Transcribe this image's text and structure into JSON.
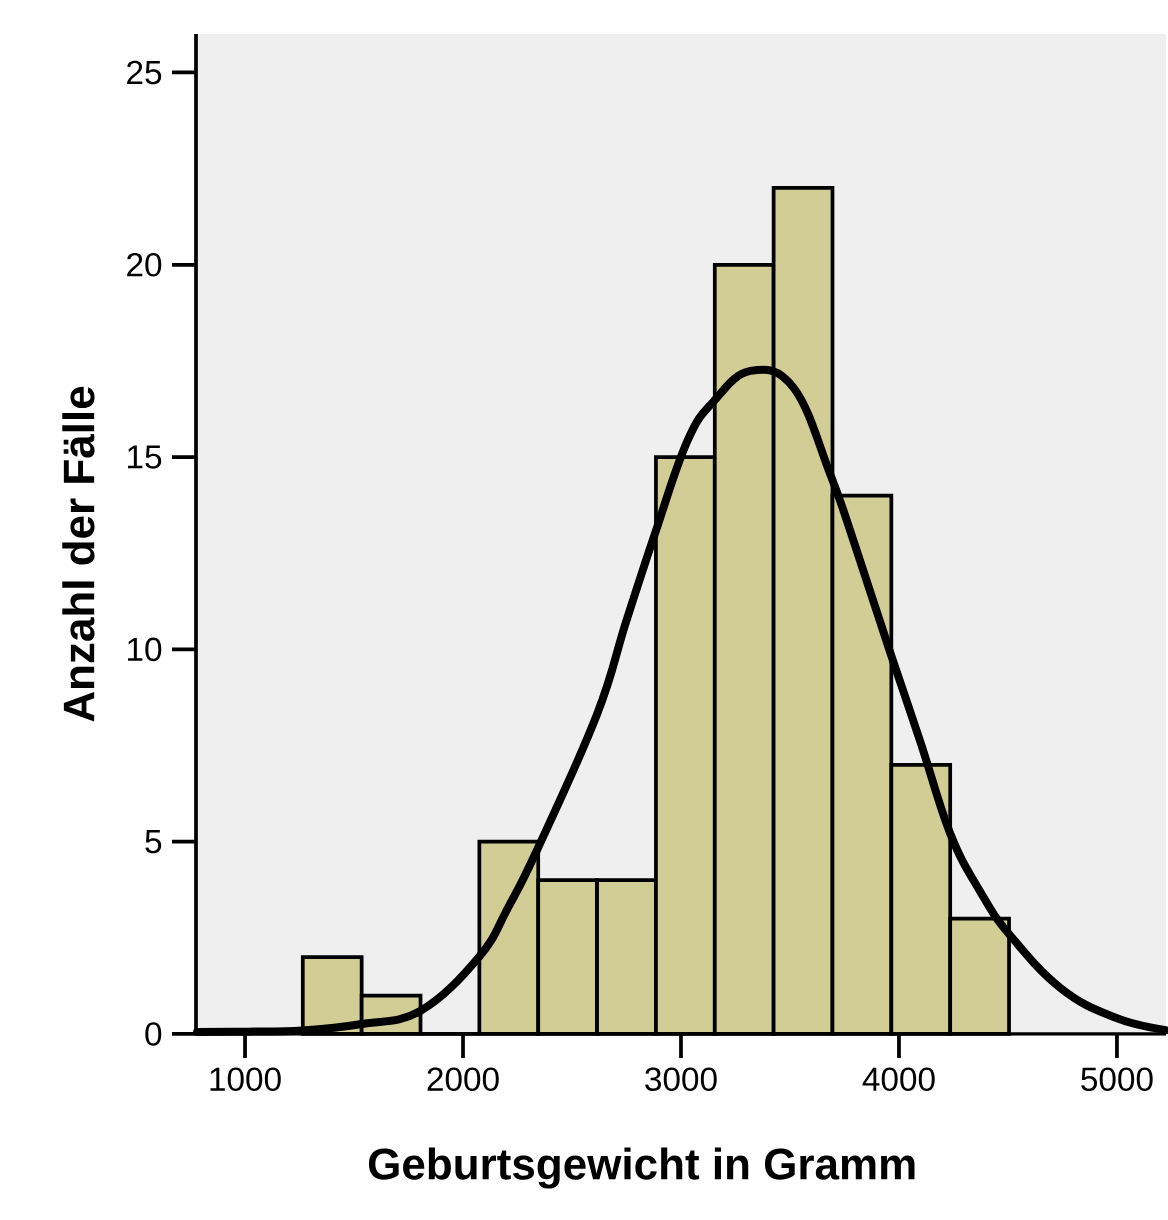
{
  "chart_data": {
    "type": "histogram",
    "xlabel": "Geburtsgewicht in Gramm",
    "ylabel": "Anzahl der Fälle",
    "bins": [
      1265,
      1535,
      1805,
      2075,
      2345,
      2615,
      2885,
      3155,
      3425,
      3695,
      3965,
      4235,
      4505
    ],
    "series": [
      {
        "color": "#d1cd94",
        "values": [
          2,
          1,
          0,
          5,
          4,
          4,
          15,
          20,
          22,
          14,
          7,
          3
        ]
      },
      {
        "type": "line",
        "color": "#000000",
        "x": [
          780,
          1010,
          1263,
          1535,
          1804,
          2073,
          2208,
          2345,
          2614,
          2747,
          2880,
          3028,
          3150,
          3319,
          3517,
          3685,
          3793,
          3961,
          4098,
          4236,
          4373,
          4505,
          4740,
          4985,
          5224
        ],
        "values": [
          0.05,
          0.06,
          0.09,
          0.26,
          0.6,
          2.0,
          3.3,
          4.85,
          8.3,
          10.7,
          13.0,
          15.4,
          16.45,
          17.24,
          16.8,
          14.55,
          12.8,
          9.9,
          7.6,
          5.2,
          3.7,
          2.6,
          1.2,
          0.44,
          0.1
        ]
      }
    ],
    "xlim": [
      775,
      5225
    ],
    "ylim": [
      0,
      26
    ],
    "xticks": [
      1000,
      2000,
      3000,
      4000,
      5000
    ],
    "yticks": [
      0,
      5,
      10,
      15,
      20,
      25
    ]
  }
}
